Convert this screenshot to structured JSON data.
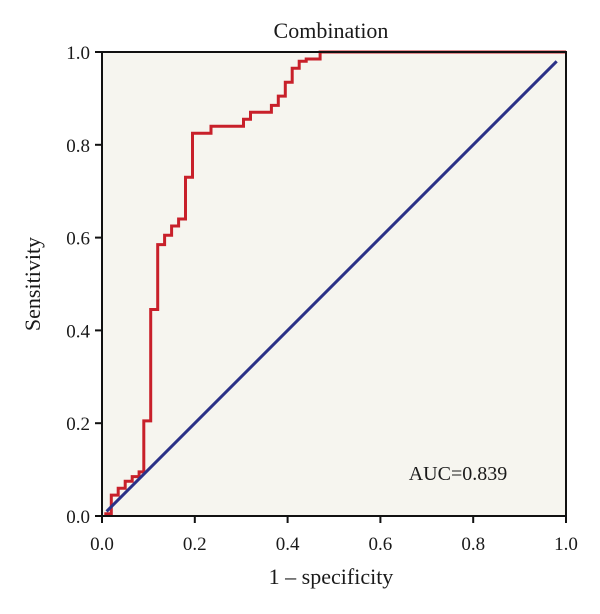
{
  "chart_data": {
    "type": "line",
    "title": "Combination",
    "xlabel": "1 – specificity",
    "ylabel": "Sensitivity",
    "xlim": [
      0,
      1
    ],
    "ylim": [
      0,
      1
    ],
    "x_ticks": [
      "0.0",
      "0.2",
      "0.4",
      "0.6",
      "0.8",
      "1.0"
    ],
    "y_ticks": [
      "0.0",
      "0.2",
      "0.4",
      "0.6",
      "0.8",
      "1.0"
    ],
    "grid": false,
    "annotation": "AUC=0.839",
    "series": [
      {
        "color": "#c8202a",
        "x": [
          0.005,
          0.02,
          0.02,
          0.035,
          0.035,
          0.05,
          0.05,
          0.065,
          0.065,
          0.08,
          0.08,
          0.09,
          0.09,
          0.105,
          0.105,
          0.12,
          0.12,
          0.135,
          0.135,
          0.15,
          0.15,
          0.165,
          0.165,
          0.18,
          0.18,
          0.195,
          0.195,
          0.235,
          0.235,
          0.305,
          0.305,
          0.32,
          0.32,
          0.365,
          0.365,
          0.38,
          0.38,
          0.395,
          0.395,
          0.41,
          0.41,
          0.425,
          0.425,
          0.44,
          0.44,
          0.47,
          0.47,
          1.0
        ],
        "y": [
          0.005,
          0.005,
          0.045,
          0.045,
          0.06,
          0.06,
          0.075,
          0.075,
          0.085,
          0.085,
          0.095,
          0.095,
          0.205,
          0.205,
          0.445,
          0.445,
          0.585,
          0.585,
          0.605,
          0.605,
          0.625,
          0.625,
          0.64,
          0.64,
          0.73,
          0.73,
          0.825,
          0.825,
          0.84,
          0.84,
          0.855,
          0.855,
          0.87,
          0.87,
          0.885,
          0.885,
          0.905,
          0.905,
          0.935,
          0.935,
          0.965,
          0.965,
          0.98,
          0.98,
          0.985,
          0.985,
          1.0,
          1.0
        ]
      },
      {
        "color": "#2b3187",
        "x": [
          0.01,
          0.98
        ],
        "y": [
          0.01,
          0.98
        ]
      }
    ]
  }
}
